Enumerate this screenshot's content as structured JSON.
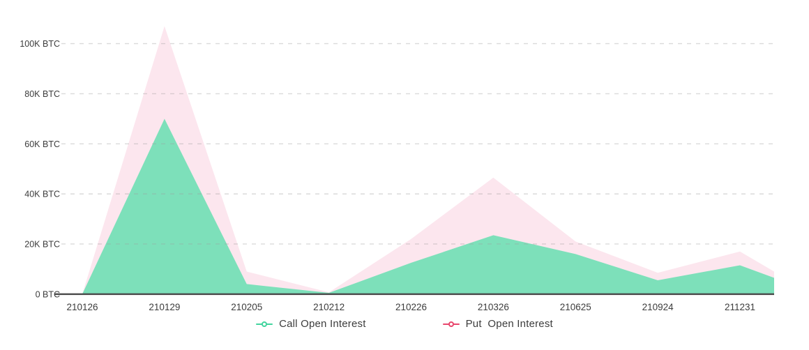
{
  "chart_data": {
    "type": "area",
    "title": "",
    "unit": "BTC",
    "categories": [
      "210126",
      "210129",
      "210205",
      "210212",
      "210226",
      "210326",
      "210625",
      "210924",
      "211231"
    ],
    "series": [
      {
        "name": "Call Open Interest",
        "values": [
          0,
          70000,
          4000,
          500,
          12500,
          23500,
          16000,
          5500,
          11500
        ],
        "clipped_edge_value": 6500,
        "fill_color": "#7de0ba",
        "marker_color": "#42d49e"
      },
      {
        "name": "Put Open Interest",
        "values": [
          0,
          107000,
          9000,
          700,
          22000,
          46500,
          21000,
          8500,
          17000
        ],
        "clipped_edge_value": 9000,
        "fill_color": "#fce6ee",
        "marker_color": "#e8476d"
      }
    ],
    "y_ticks": [
      {
        "value": 0,
        "label": "0 BTC"
      },
      {
        "value": 20000,
        "label": "20K BTC"
      },
      {
        "value": 40000,
        "label": "40K BTC"
      },
      {
        "value": 60000,
        "label": "60K BTC"
      },
      {
        "value": 80000,
        "label": "80K BTC"
      },
      {
        "value": 100000,
        "label": "100K BTC"
      }
    ],
    "ylim": [
      0,
      110000
    ],
    "xlabel": "",
    "ylabel": "",
    "grid": "horizontal-dashed",
    "legend_position": "bottom"
  },
  "legend": {
    "items": [
      {
        "label": "Call Open Interest",
        "color": "#42d49e"
      },
      {
        "label": "Put  Open Interest",
        "color": "#e8476d"
      }
    ]
  },
  "colors": {
    "background": "#ffffff",
    "axis_line": "#4a4a4a",
    "grid_line": "#9e9e9e",
    "tick_text": "#3c3c3c"
  }
}
